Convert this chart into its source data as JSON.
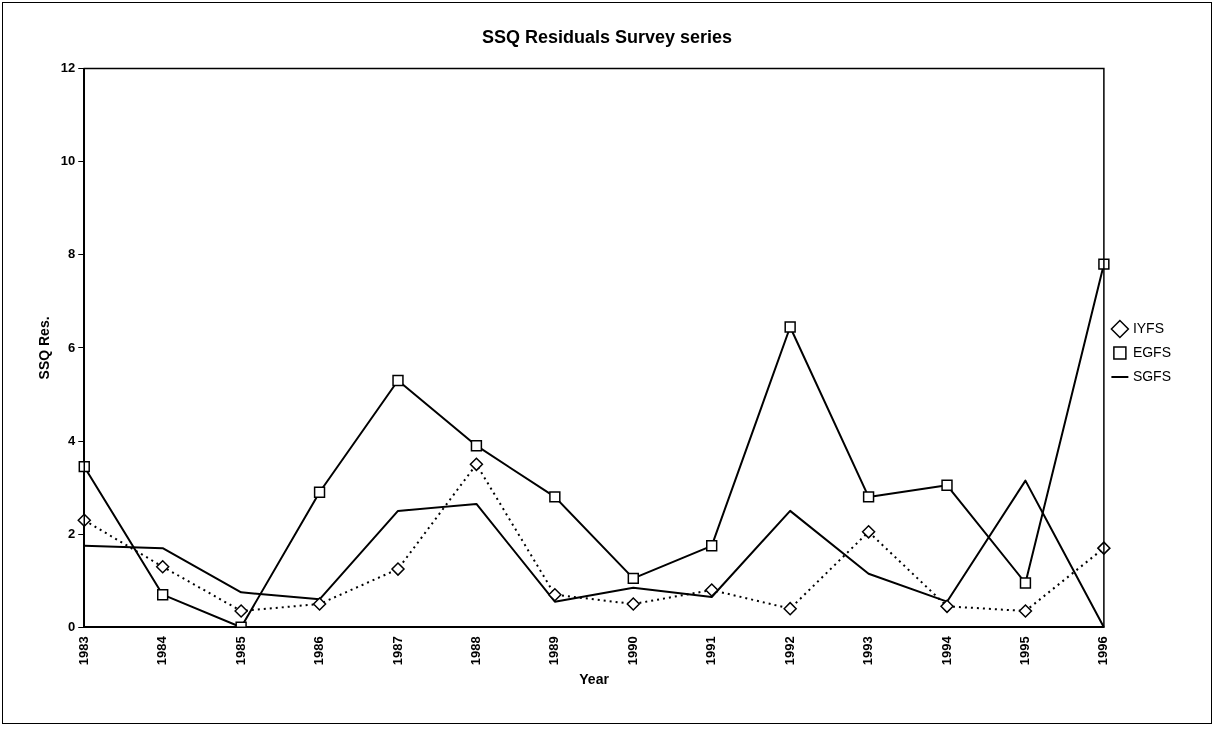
{
  "chart_data": {
    "type": "line",
    "title": "SSQ Residuals Survey series",
    "xlabel": "Year",
    "ylabel": "SSQ Res.",
    "categories": [
      "1983",
      "1984",
      "1985",
      "1986",
      "1987",
      "1988",
      "1989",
      "1990",
      "1991",
      "1992",
      "1993",
      "1994",
      "1995",
      "1996"
    ],
    "series": [
      {
        "name": "IYFS",
        "color": "#000000",
        "marker": "diamond",
        "line_style": "dotted",
        "values": [
          2.3,
          1.3,
          0.35,
          0.5,
          1.25,
          3.5,
          0.7,
          0.5,
          0.8,
          0.4,
          2.05,
          0.45,
          0.35,
          1.7
        ]
      },
      {
        "name": "EGFS",
        "color": "#000000",
        "marker": "square",
        "line_style": "solid",
        "values": [
          3.45,
          0.7,
          0.0,
          2.9,
          5.3,
          3.9,
          2.8,
          1.05,
          1.75,
          6.45,
          2.8,
          3.05,
          0.95,
          7.8
        ]
      },
      {
        "name": "SGFS",
        "color": "#000000",
        "marker": "none",
        "line_style": "solid",
        "values": [
          1.75,
          1.7,
          0.75,
          0.6,
          2.5,
          2.65,
          0.55,
          0.85,
          0.65,
          2.5,
          1.15,
          0.55,
          3.15,
          0.0
        ]
      }
    ],
    "ylim": [
      0,
      12
    ],
    "yticks": [
      0,
      2,
      4,
      6,
      8,
      10,
      12
    ],
    "grid": false,
    "legend": "right"
  }
}
